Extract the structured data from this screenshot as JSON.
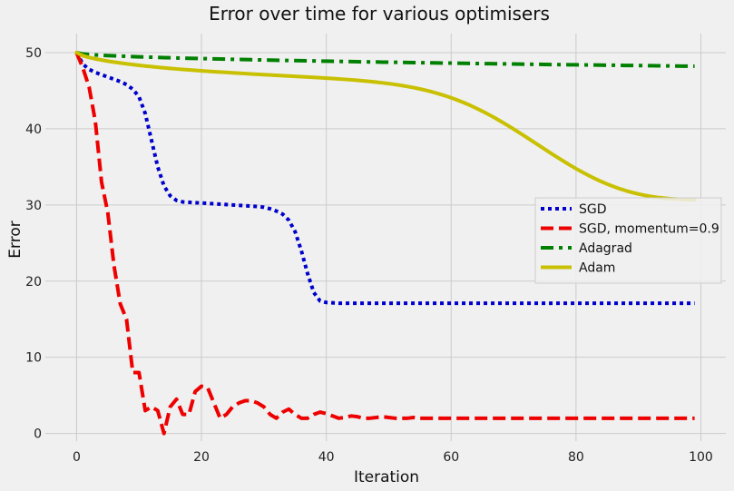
{
  "chart_data": {
    "type": "line",
    "title": "Error over time for various optimisers",
    "xlabel": "Iteration",
    "ylabel": "Error",
    "xlim": [
      -5,
      104
    ],
    "ylim": [
      -1,
      52.5
    ],
    "xticks": [
      0,
      20,
      40,
      60,
      80,
      100
    ],
    "yticks": [
      0,
      10,
      20,
      30,
      40,
      50
    ],
    "grid": true,
    "legend_position": "center-right",
    "x": [
      0,
      1,
      2,
      3,
      4,
      5,
      6,
      7,
      8,
      9,
      10,
      11,
      12,
      13,
      14,
      15,
      16,
      17,
      18,
      19,
      20,
      21,
      22,
      23,
      24,
      25,
      26,
      27,
      28,
      29,
      30,
      31,
      32,
      33,
      34,
      35,
      36,
      37,
      38,
      39,
      40,
      41,
      42,
      43,
      44,
      45,
      46,
      47,
      48,
      49,
      50,
      51,
      52,
      53,
      54,
      55,
      56,
      57,
      58,
      59,
      60,
      61,
      62,
      63,
      64,
      65,
      66,
      67,
      68,
      69,
      70,
      71,
      72,
      73,
      74,
      75,
      76,
      77,
      78,
      79,
      80,
      81,
      82,
      83,
      84,
      85,
      86,
      87,
      88,
      89,
      90,
      91,
      92,
      93,
      94,
      95,
      96,
      97,
      98,
      99
    ],
    "series": [
      {
        "name": "SGD",
        "color": "#0000cc",
        "style": "dotted",
        "values": [
          50,
          48.5,
          47.8,
          47.4,
          47.1,
          46.8,
          46.5,
          46.2,
          45.8,
          45.2,
          44.2,
          42.0,
          38.5,
          35.0,
          32.5,
          31.2,
          30.6,
          30.4,
          30.35,
          30.3,
          30.25,
          30.2,
          30.15,
          30.1,
          30.05,
          30.0,
          29.95,
          29.9,
          29.85,
          29.8,
          29.7,
          29.5,
          29.2,
          28.8,
          28.0,
          26.5,
          24.0,
          21.0,
          18.5,
          17.4,
          17.2,
          17.15,
          17.1,
          17.1,
          17.1,
          17.1,
          17.1,
          17.1,
          17.1,
          17.1,
          17.1,
          17.1,
          17.1,
          17.1,
          17.1,
          17.1,
          17.1,
          17.1,
          17.1,
          17.1,
          17.1,
          17.1,
          17.1,
          17.1,
          17.1,
          17.1,
          17.1,
          17.1,
          17.1,
          17.1,
          17.1,
          17.1,
          17.1,
          17.1,
          17.1,
          17.1,
          17.1,
          17.1,
          17.1,
          17.1,
          17.1,
          17.1,
          17.1,
          17.1,
          17.1,
          17.1,
          17.1,
          17.1,
          17.1,
          17.1,
          17.1,
          17.1,
          17.1,
          17.1,
          17.1,
          17.1,
          17.1,
          17.1,
          17.1,
          17.1
        ]
      },
      {
        "name": "SGD, momentum=0.9",
        "color": "#ee0000",
        "style": "dashed",
        "values": [
          50,
          48.0,
          45.5,
          41.0,
          33.0,
          29.0,
          22.0,
          17.0,
          15.0,
          8.0,
          8.0,
          3.0,
          3.5,
          3.0,
          0.0,
          3.5,
          4.5,
          2.5,
          2.5,
          5.5,
          6.2,
          6.0,
          4.0,
          2.0,
          2.5,
          3.5,
          4.0,
          4.3,
          4.3,
          4.0,
          3.5,
          2.5,
          2.0,
          2.8,
          3.2,
          2.5,
          2.0,
          2.0,
          2.5,
          2.8,
          2.6,
          2.3,
          2.0,
          2.1,
          2.3,
          2.2,
          2.0,
          2.0,
          2.1,
          2.2,
          2.1,
          2.0,
          2.0,
          2.0,
          2.1,
          2.0,
          2.0,
          2.0,
          2.0,
          2.0,
          2.0,
          2.0,
          2.0,
          2.0,
          2.0,
          2.0,
          2.0,
          2.0,
          2.0,
          2.0,
          2.0,
          2.0,
          2.0,
          2.0,
          2.0,
          2.0,
          2.0,
          2.0,
          2.0,
          2.0,
          2.0,
          2.0,
          2.0,
          2.0,
          2.0,
          2.0,
          2.0,
          2.0,
          2.0,
          2.0,
          2.0,
          2.0,
          2.0,
          2.0,
          2.0,
          2.0,
          2.0,
          2.0,
          2.0,
          2.0
        ]
      },
      {
        "name": "Adagrad",
        "color": "#008000",
        "style": "dashdot",
        "values": [
          50,
          49.83,
          49.76,
          49.7,
          49.65,
          49.61,
          49.58,
          49.54,
          49.51,
          49.48,
          49.45,
          49.42,
          49.4,
          49.37,
          49.35,
          49.33,
          49.3,
          49.28,
          49.26,
          49.24,
          49.22,
          49.2,
          49.18,
          49.16,
          49.14,
          49.12,
          49.1,
          49.09,
          49.07,
          49.05,
          49.03,
          49.02,
          49.0,
          48.98,
          48.97,
          48.95,
          48.94,
          48.92,
          48.91,
          48.89,
          48.88,
          48.86,
          48.85,
          48.84,
          48.82,
          48.81,
          48.79,
          48.78,
          48.77,
          48.75,
          48.74,
          48.73,
          48.72,
          48.7,
          48.69,
          48.68,
          48.67,
          48.65,
          48.64,
          48.63,
          48.62,
          48.61,
          48.6,
          48.58,
          48.57,
          48.56,
          48.55,
          48.54,
          48.53,
          48.52,
          48.51,
          48.5,
          48.48,
          48.47,
          48.46,
          48.45,
          48.44,
          48.43,
          48.42,
          48.41,
          48.4,
          48.39,
          48.38,
          48.37,
          48.36,
          48.35,
          48.34,
          48.33,
          48.32,
          48.31,
          48.3,
          48.29,
          48.28,
          48.27,
          48.26,
          48.25,
          48.24,
          48.23,
          48.22,
          48.21
        ]
      },
      {
        "name": "Adam",
        "color": "#c8c000",
        "style": "solid",
        "values": [
          50,
          49.6,
          49.37,
          49.18,
          49.03,
          48.88,
          48.76,
          48.64,
          48.53,
          48.43,
          48.33,
          48.24,
          48.16,
          48.08,
          48.0,
          47.93,
          47.86,
          47.79,
          47.73,
          47.67,
          47.61,
          47.55,
          47.5,
          47.45,
          47.4,
          47.35,
          47.3,
          47.25,
          47.2,
          47.15,
          47.11,
          47.06,
          47.02,
          46.97,
          46.93,
          46.88,
          46.84,
          46.79,
          46.75,
          46.7,
          46.65,
          46.6,
          46.54,
          46.49,
          46.43,
          46.36,
          46.29,
          46.21,
          46.13,
          46.03,
          45.93,
          45.82,
          45.69,
          45.55,
          45.4,
          45.23,
          45.04,
          44.83,
          44.6,
          44.35,
          44.07,
          43.77,
          43.44,
          43.09,
          42.71,
          42.31,
          41.88,
          41.43,
          40.96,
          40.47,
          39.97,
          39.45,
          38.92,
          38.39,
          37.85,
          37.32,
          36.78,
          36.26,
          35.75,
          35.25,
          34.77,
          34.31,
          33.88,
          33.47,
          33.09,
          32.74,
          32.42,
          32.13,
          31.87,
          31.64,
          31.44,
          31.27,
          31.12,
          31.0,
          30.9,
          30.83,
          30.77,
          30.72,
          30.69,
          30.67
        ]
      }
    ]
  }
}
